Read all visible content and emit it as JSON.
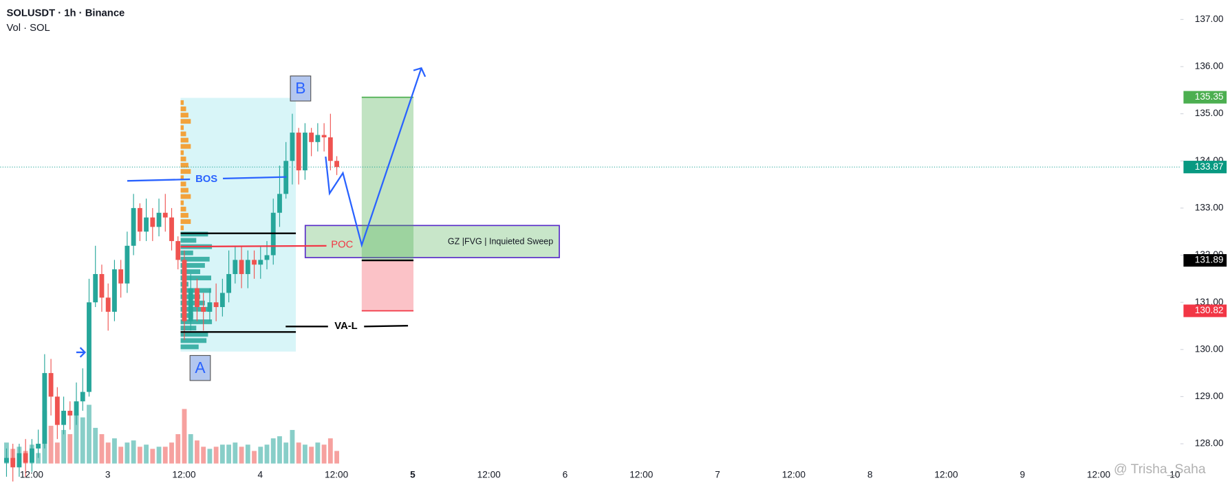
{
  "chart_data": {
    "type": "candlestick",
    "title": "SOLUSDT · 1h · Binance",
    "subtitle": "Vol · SOL",
    "watermark": "@ Trisha_Saha",
    "x_labels": [
      "12:00",
      "3",
      "12:00",
      "4",
      "12:00",
      "5",
      "12:00",
      "6",
      "12:00",
      "7",
      "12:00",
      "8",
      "12:00",
      "9",
      "12:00",
      "10"
    ],
    "open": [
      127.6,
      127.7,
      127.5,
      127.8,
      127.6,
      127.9,
      128.0,
      129.5,
      129.0,
      128.4,
      128.7,
      128.6,
      128.9,
      129.1,
      131.0,
      131.6,
      131.1,
      130.8,
      131.7,
      131.4,
      132.2,
      133.0,
      132.5,
      132.8,
      132.6,
      132.9,
      132.8,
      132.3,
      131.9,
      130.6,
      131.3,
      130.9,
      130.8,
      131.0,
      130.9,
      131.2,
      131.6,
      131.9,
      131.6,
      131.9,
      131.8,
      131.9,
      132.0,
      132.9,
      133.3,
      134.0,
      134.6,
      133.8,
      134.6,
      134.4,
      134.55,
      134.5,
      134.0
    ],
    "high": [
      127.9,
      128.0,
      128.0,
      128.1,
      128.1,
      128.3,
      129.9,
      129.8,
      129.2,
      129.0,
      128.9,
      129.3,
      129.6,
      131.5,
      132.2,
      131.8,
      131.4,
      131.9,
      131.9,
      132.5,
      133.3,
      133.1,
      133.2,
      133.0,
      133.2,
      133.3,
      133.0,
      132.4,
      132.1,
      131.6,
      131.5,
      131.2,
      131.3,
      131.4,
      131.5,
      132.1,
      132.2,
      132.2,
      132.1,
      132.1,
      132.2,
      132.3,
      133.2,
      133.9,
      134.4,
      135.0,
      134.7,
      134.8,
      134.7,
      134.8,
      134.8,
      135.0,
      134.1
    ],
    "low": [
      127.3,
      127.2,
      127.3,
      127.3,
      127.4,
      127.7,
      127.9,
      128.6,
      128.1,
      128.2,
      128.3,
      128.4,
      128.7,
      129.0,
      130.9,
      130.8,
      130.4,
      130.6,
      131.1,
      131.2,
      132.0,
      132.3,
      132.3,
      132.3,
      132.4,
      132.5,
      132.1,
      131.7,
      130.2,
      130.4,
      130.6,
      130.4,
      130.6,
      130.6,
      130.7,
      131.0,
      131.4,
      131.3,
      131.3,
      131.5,
      131.5,
      131.7,
      131.8,
      132.6,
      133.2,
      133.5,
      133.5,
      133.6,
      134.1,
      134.2,
      134.2,
      133.8,
      133.7
    ],
    "close": [
      127.7,
      127.5,
      127.8,
      127.6,
      127.9,
      128.0,
      129.5,
      129.0,
      128.4,
      128.7,
      128.6,
      128.9,
      129.1,
      131.0,
      131.6,
      131.1,
      130.8,
      131.7,
      131.4,
      132.2,
      133.0,
      132.5,
      132.8,
      132.6,
      132.9,
      132.8,
      132.3,
      131.9,
      130.6,
      131.3,
      130.9,
      130.8,
      131.0,
      130.9,
      131.2,
      131.6,
      131.9,
      131.6,
      131.9,
      131.8,
      131.9,
      132.0,
      132.9,
      133.3,
      134.0,
      134.6,
      133.8,
      134.6,
      134.4,
      134.55,
      134.5,
      134.0,
      133.87
    ],
    "volume": [
      10,
      7,
      8,
      6,
      9,
      5,
      25,
      18,
      10,
      16,
      14,
      24,
      22,
      28,
      17,
      14,
      10,
      12,
      8,
      10,
      11,
      8,
      9,
      7,
      8,
      8,
      10,
      14,
      26,
      14,
      11,
      8,
      7,
      8,
      9,
      9,
      10,
      8,
      9,
      6,
      8,
      9,
      12,
      13,
      10,
      16,
      10,
      9,
      8,
      10,
      9,
      12,
      6
    ],
    "up_color": "#26a69a",
    "down_color": "#ef5350",
    "ylim": [
      127.0,
      137.33
    ],
    "yticks": [
      {
        "value": 128,
        "label": "128.00"
      },
      {
        "value": 129,
        "label": "129.00"
      },
      {
        "value": 130,
        "label": "130.00"
      },
      {
        "value": 131,
        "label": "131.00"
      },
      {
        "value": 132,
        "label": "132.00"
      },
      {
        "value": 133,
        "label": "133.00"
      },
      {
        "value": 134,
        "label": "134.00"
      },
      {
        "value": 135,
        "label": "135.00"
      },
      {
        "value": 136,
        "label": "136.00"
      },
      {
        "value": 137,
        "label": "137.00"
      }
    ],
    "position": {
      "target": 135.35,
      "entry": 131.89,
      "stop": 130.82,
      "target_color": "#4caf50",
      "stop_color": "#f23645"
    },
    "annotations": {
      "a": "A",
      "b": "B",
      "bos": "BOS",
      "poc": "POC",
      "val": "VA-L",
      "zone": "GZ |FVG | Inquieted Sweep"
    }
  }
}
